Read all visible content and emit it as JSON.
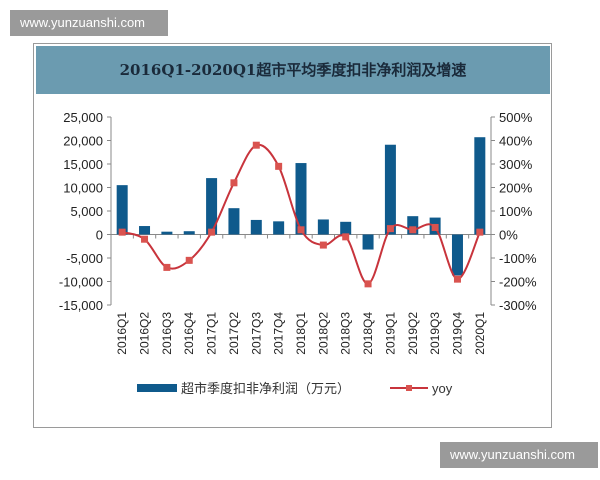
{
  "watermarks": [
    "www.yunzuanshi.com",
    "www.yunzuanshi.com"
  ],
  "chart_data": {
    "type": "bar+line",
    "title": "2016Q1-2020Q1超市平均季度扣非净利润及增速",
    "categories": [
      "2016Q1",
      "2016Q2",
      "2016Q3",
      "2016Q4",
      "2017Q1",
      "2017Q2",
      "2017Q3",
      "2017Q4",
      "2018Q1",
      "2018Q2",
      "2018Q3",
      "2018Q4",
      "2019Q1",
      "2019Q2",
      "2019Q3",
      "2019Q4",
      "2020Q1"
    ],
    "series": [
      {
        "name": "超市季度扣非净利润（万元）",
        "type": "bar",
        "axis": "left",
        "color": "#0f5a8c",
        "values": [
          10500,
          1800,
          600,
          700,
          12000,
          5600,
          3100,
          2800,
          15200,
          3200,
          2700,
          -3200,
          19100,
          3900,
          3600,
          -8700,
          20700
        ]
      },
      {
        "name": "yoy",
        "type": "line",
        "axis": "right",
        "color": "#c8343c",
        "marker_color": "#d9534f",
        "values": [
          10,
          -20,
          -140,
          -110,
          10,
          220,
          380,
          290,
          20,
          -45,
          -10,
          -210,
          25,
          20,
          30,
          -190,
          10
        ]
      }
    ],
    "left_axis": {
      "range": [
        -15000,
        25000
      ],
      "ticks": [
        "-15,000",
        "-10,000",
        "-5,000",
        "0",
        "5,000",
        "10,000",
        "15,000",
        "20,000",
        "25,000"
      ]
    },
    "right_axis": {
      "range": [
        -300,
        500
      ],
      "ticks": [
        "-300%",
        "-200%",
        "-100%",
        "0%",
        "100%",
        "200%",
        "300%",
        "400%",
        "500%"
      ]
    },
    "legend_placement": "bottom",
    "grid": false
  }
}
